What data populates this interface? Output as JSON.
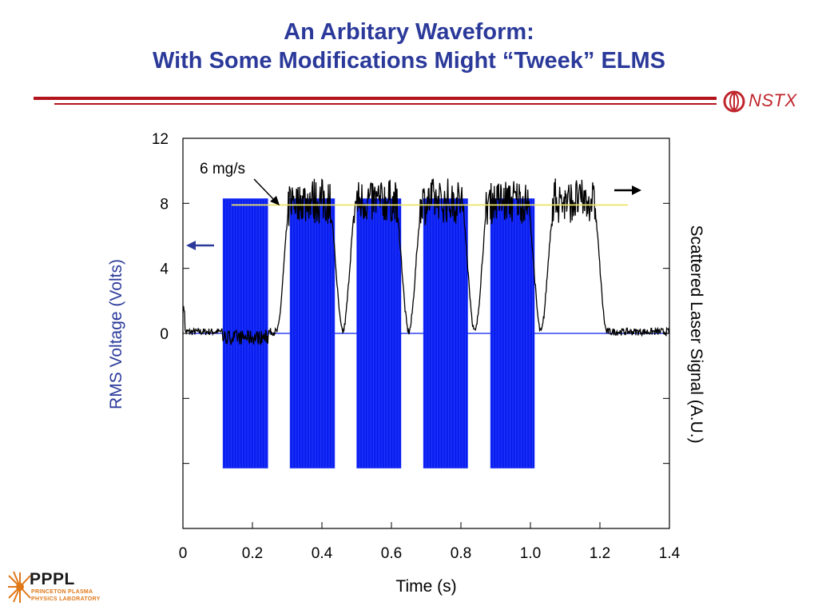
{
  "slide": {
    "title_line1": "An Arbitary Waveform:",
    "title_line2": "With Some Modifications Might “Tweek” ELMS",
    "logo_right": "NSTX",
    "logo_left": "PPPL",
    "logo_left_sub1": "PRINCETON PLASMA",
    "logo_left_sub2": "PHYSICS LABORATORY"
  },
  "colors": {
    "title": "#2b3a9a",
    "rule": "#b3131b",
    "rms_series": "#0a1ef0",
    "laser_series": "#000000",
    "reference_line": "#ece36a"
  },
  "chart_data": {
    "type": "line",
    "title": "",
    "xlabel": "Time (s)",
    "ylabel": "RMS Voltage (Volts)",
    "y2label": "Scattered Laser Signal (A.U.)",
    "xlim": [
      0,
      1.4
    ],
    "ylim": [
      -12,
      12
    ],
    "xticks": [
      "0",
      "0.2",
      "0.4",
      "0.6",
      "0.8",
      "1.0",
      "1.2",
      "1.4"
    ],
    "xtick_values": [
      0,
      0.2,
      0.4,
      0.6,
      0.8,
      1.0,
      1.2,
      1.4
    ],
    "yticks": [
      "12",
      "8",
      "4",
      "0",
      "",
      "",
      ""
    ],
    "ytick_values": [
      12,
      8,
      4,
      0,
      -4,
      -8,
      -12
    ],
    "grid": false,
    "annotation": "6 mg/s",
    "reference_level": 7.9,
    "reference_x": [
      0.14,
      1.28
    ],
    "series": [
      {
        "name": "",
        "kind": "rms_bursts",
        "baseline": 0,
        "bursts": [
          {
            "start": 0.115,
            "end": 0.245,
            "min": -8.3,
            "max": 8.3
          },
          {
            "start": 0.308,
            "end": 0.437,
            "min": -8.3,
            "max": 8.3
          },
          {
            "start": 0.5,
            "end": 0.628,
            "min": -8.3,
            "max": 8.3
          },
          {
            "start": 0.692,
            "end": 0.82,
            "min": -8.3,
            "max": 8.3
          },
          {
            "start": 0.885,
            "end": 1.012,
            "min": -8.3,
            "max": 8.3
          }
        ]
      },
      {
        "name": "",
        "kind": "laser_signal",
        "baseline": 0.1,
        "plateau_level": 8.0,
        "pulses": [
          {
            "start": 0.29,
            "end": 0.44
          },
          {
            "start": 0.48,
            "end": 0.63
          },
          {
            "start": 0.67,
            "end": 0.82
          },
          {
            "start": 0.86,
            "end": 1.01
          },
          {
            "start": 1.05,
            "end": 1.2
          }
        ]
      }
    ]
  }
}
